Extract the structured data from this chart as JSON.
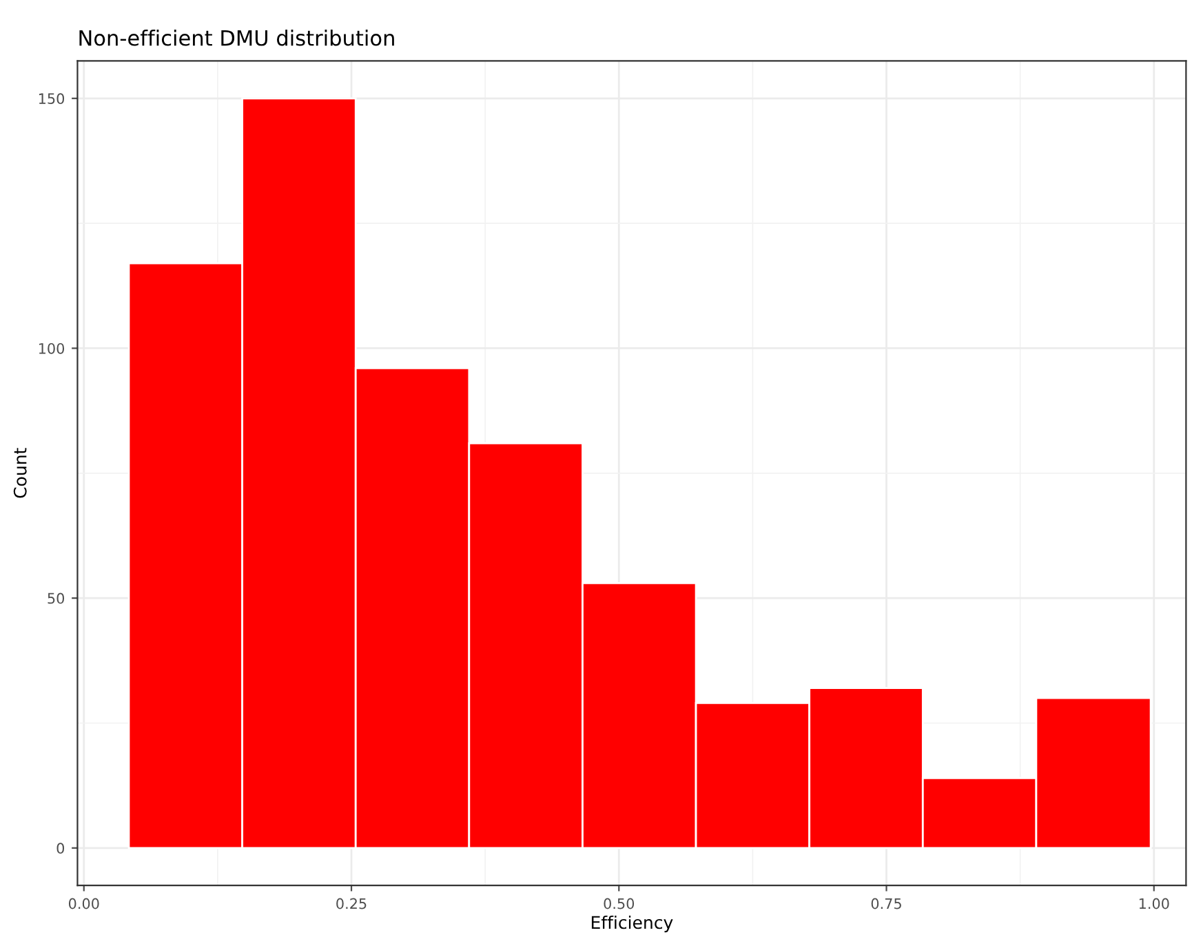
{
  "chart_data": {
    "type": "histogram",
    "title": "Non-efficient DMU distribution",
    "xlabel": "Efficiency",
    "ylabel": "Count",
    "bins": [
      0.042,
      0.148,
      0.254,
      0.36,
      0.466,
      0.572,
      0.678,
      0.784,
      0.89,
      0.997
    ],
    "values": [
      117,
      150,
      96,
      81,
      53,
      29,
      32,
      14,
      30
    ],
    "color": "#ff0000",
    "xlim": [
      -0.006,
      1.03
    ],
    "xticks": [
      {
        "value": 0,
        "label": "0.00"
      },
      {
        "value": 0.25,
        "label": "0.25"
      },
      {
        "value": 0.5,
        "label": "0.50"
      },
      {
        "value": 0.75,
        "label": "0.75"
      },
      {
        "value": 1,
        "label": "1.00"
      }
    ],
    "ylim": [
      -7.5,
      157.5
    ],
    "yticks": [
      0,
      50,
      100,
      150
    ],
    "grid": true
  }
}
